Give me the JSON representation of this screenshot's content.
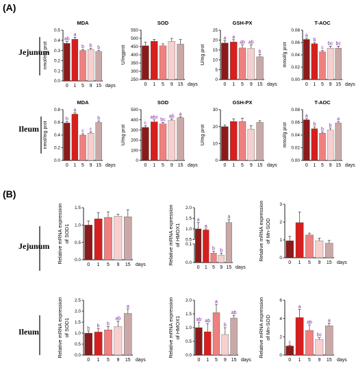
{
  "panel_labels": {
    "a": "(A)",
    "b": "(B)"
  },
  "row_labels": {
    "jejunum": "Jejunum",
    "ileum": "Ileum"
  },
  "days_label": "days",
  "colors": [
    "#8B1A1A",
    "#D61F1F",
    "#F08080",
    "#F6CFCF",
    "#C9A8A8"
  ],
  "chart_data": [
    {
      "id": "a_jej_mda",
      "type": "bar",
      "title": "MDA",
      "ylabel": "nmol/mg prot",
      "categories": [
        "0",
        "1",
        "5",
        "9",
        "15"
      ],
      "ylim": [
        0,
        0.5
      ],
      "yticks": [
        "0.0",
        "0.1",
        "0.2",
        "0.3",
        "0.4",
        "0.5"
      ],
      "values": [
        0.37,
        0.41,
        0.3,
        0.31,
        0.29
      ],
      "errors": [
        0.02,
        0.02,
        0.01,
        0.01,
        0.01
      ],
      "labels": [
        "ab",
        "a",
        "b",
        "b",
        "b"
      ]
    },
    {
      "id": "a_jej_sod",
      "type": "bar",
      "title": "SOD",
      "ylabel": "U/mgprot",
      "categories": [
        "0",
        "1",
        "5",
        "9",
        "15"
      ],
      "ylim": [
        250,
        550
      ],
      "yticks": [
        "250",
        "300",
        "350",
        "400",
        "450",
        "500",
        "550"
      ],
      "values": [
        455,
        482,
        455,
        482,
        465
      ],
      "errors": [
        22,
        12,
        12,
        18,
        28
      ],
      "labels": [
        "",
        "",
        "",
        "",
        ""
      ]
    },
    {
      "id": "a_jej_gsh",
      "type": "bar",
      "title": "GSH-PX",
      "ylabel": "U/mg prot",
      "categories": [
        "0",
        "1",
        "5",
        "9",
        "15"
      ],
      "ylim": [
        0,
        25
      ],
      "yticks": [
        "0",
        "5",
        "10",
        "15",
        "20",
        "25"
      ],
      "values": [
        18.5,
        19,
        16,
        15.8,
        11.5
      ],
      "errors": [
        1.2,
        1.2,
        1.5,
        1.8,
        1.2
      ],
      "labels": [
        "a",
        "a",
        "ab",
        "ab",
        "b"
      ]
    },
    {
      "id": "a_jej_taoc",
      "type": "bar",
      "title": "T-AOC",
      "ylabel": "mmol/g prot",
      "categories": [
        "0",
        "1",
        "5",
        "9",
        "15"
      ],
      "ylim": [
        0,
        0.08
      ],
      "yticks": [
        "0.00",
        "0.02",
        "0.04",
        "0.06",
        "0.08"
      ],
      "values": [
        0.065,
        0.058,
        0.045,
        0.051,
        0.051
      ],
      "errors": [
        0.002,
        0.002,
        0.002,
        0.003,
        0.003
      ],
      "labels": [
        "a",
        "b",
        "c",
        "bc",
        "bc"
      ]
    },
    {
      "id": "a_ile_mda",
      "type": "bar",
      "title": "MDA",
      "ylabel": "nmol/mg prot",
      "categories": [
        "0",
        "1",
        "5",
        "9",
        "15"
      ],
      "ylim": [
        0,
        0.8
      ],
      "yticks": [
        "0.0",
        "0.2",
        "0.4",
        "0.6",
        "0.8"
      ],
      "values": [
        0.59,
        0.73,
        0.4,
        0.43,
        0.6
      ],
      "errors": [
        0.02,
        0.02,
        0.02,
        0.02,
        0.02
      ],
      "labels": [
        "b",
        "a",
        "c",
        "c",
        "b"
      ]
    },
    {
      "id": "a_ile_sod",
      "type": "bar",
      "title": "SOD",
      "ylabel": "U/mg prot",
      "categories": [
        "0",
        "1",
        "5",
        "9",
        "15"
      ],
      "ylim": [
        0,
        500
      ],
      "yticks": [
        "0",
        "100",
        "200",
        "300",
        "400",
        "500"
      ],
      "values": [
        325,
        380,
        360,
        395,
        420
      ],
      "errors": [
        15,
        20,
        15,
        15,
        10
      ],
      "labels": [
        "c",
        "abc",
        "bc",
        "ab",
        "a"
      ]
    },
    {
      "id": "a_ile_gsh",
      "type": "bar",
      "title": "GSH-PX",
      "ylabel": "U/mg prot",
      "categories": [
        "0",
        "1",
        "5",
        "9",
        "15"
      ],
      "ylim": [
        0,
        30
      ],
      "yticks": [
        "0",
        "10",
        "20",
        "30"
      ],
      "values": [
        20,
        23,
        23,
        18.5,
        22.5
      ],
      "errors": [
        1,
        1.5,
        2,
        2,
        1
      ],
      "labels": [
        "",
        "",
        "",
        "",
        ""
      ]
    },
    {
      "id": "a_ile_taoc",
      "type": "bar",
      "title": "T-AOC",
      "ylabel": "mmol/g prot",
      "categories": [
        "0",
        "1",
        "5",
        "9",
        "15"
      ],
      "ylim": [
        0,
        0.08
      ],
      "yticks": [
        "0.00",
        "0.02",
        "0.04",
        "0.06",
        "0.08"
      ],
      "values": [
        0.064,
        0.05,
        0.043,
        0.048,
        0.059
      ],
      "errors": [
        0.002,
        0.003,
        0.002,
        0.003,
        0.002
      ],
      "labels": [
        "a",
        "b",
        "b",
        "b",
        "a"
      ]
    },
    {
      "id": "b_jej_sod1",
      "type": "bar",
      "title": "",
      "ylabel": "Relative mRNA expression of SOD1",
      "categories": [
        "0",
        "1",
        "5",
        "9",
        "15"
      ],
      "ylim": [
        0,
        1.5
      ],
      "yticks": [
        "0.0",
        "0.5",
        "1.0",
        "1.5"
      ],
      "values": [
        1,
        1.18,
        1.22,
        1.26,
        1.24
      ],
      "errors": [
        0.12,
        0.18,
        0.16,
        0.05,
        0.2
      ],
      "labels": [
        "",
        "",
        "",
        "",
        ""
      ]
    },
    {
      "id": "b_jej_hmox1",
      "type": "bar",
      "title": "",
      "ylabel": "Relative mRNA expression of HMOX1",
      "categories": [
        "0",
        "1",
        "5",
        "9",
        "15"
      ],
      "broken_axis": true,
      "ylim_upper": [
        0.5,
        2.0
      ],
      "yticks_upper": [
        "0.5",
        "1.0",
        "1.5",
        "2.0"
      ],
      "ylim_lower": [
        0,
        0.1
      ],
      "yticks_lower": [
        "0.0",
        "0.1"
      ],
      "values": [
        1.0,
        0.95,
        0.05,
        0.04,
        1.3
      ],
      "errors": [
        0.3,
        0.05,
        0.01,
        0.01,
        0.15
      ],
      "labels": [
        "a",
        "a",
        "b",
        "b",
        "a"
      ]
    },
    {
      "id": "b_jej_mnsod",
      "type": "bar",
      "title": "",
      "ylabel": "Relative mRNA expression of Mn-SOD",
      "categories": [
        "0",
        "1",
        "5",
        "9",
        "15"
      ],
      "ylim": [
        0,
        3
      ],
      "yticks": [
        "0",
        "1",
        "2",
        "3"
      ],
      "values": [
        0.95,
        1.97,
        1.28,
        0.95,
        0.82
      ],
      "errors": [
        0.25,
        0.6,
        0.1,
        0.15,
        0.15
      ],
      "labels": [
        "",
        "",
        "",
        "",
        ""
      ]
    },
    {
      "id": "b_ile_sod1",
      "type": "bar",
      "title": "",
      "ylabel": "Relative mRNA expression of SOD1",
      "categories": [
        "0",
        "1",
        "5",
        "9",
        "15"
      ],
      "ylim": [
        0,
        2.5
      ],
      "yticks": [
        "0.0",
        "0.5",
        "1.0",
        "1.5",
        "2.0",
        "2.5"
      ],
      "values": [
        1.0,
        1.05,
        1.15,
        1.3,
        1.9
      ],
      "errors": [
        0.1,
        0.15,
        0.15,
        0.25,
        0.2
      ],
      "labels": [
        "b",
        "b",
        "b",
        "ab",
        "a"
      ]
    },
    {
      "id": "b_ile_hmox1",
      "type": "bar",
      "title": "",
      "ylabel": "Relative mRNA expression of HMOX1",
      "categories": [
        "0",
        "1",
        "5",
        "9",
        "15"
      ],
      "ylim": [
        0,
        2
      ],
      "yticks": [
        "0.0",
        "0.5",
        "1.0",
        "1.5",
        "2.0"
      ],
      "values": [
        1.0,
        0.85,
        1.55,
        0.75,
        1.35
      ],
      "errors": [
        0.2,
        0.3,
        0.3,
        0.25,
        0.1
      ],
      "labels": [
        "ab",
        "ab",
        "a",
        "b",
        "ab"
      ]
    },
    {
      "id": "b_ile_mnsod",
      "type": "bar",
      "title": "",
      "ylabel": "Relative mRNA expression of Mn-SOD",
      "categories": [
        "0",
        "1",
        "5",
        "9",
        "15"
      ],
      "ylim": [
        0,
        6
      ],
      "yticks": [
        "0",
        "2",
        "4",
        "6"
      ],
      "values": [
        1.0,
        4.1,
        2.7,
        1.7,
        3.2
      ],
      "errors": [
        0.1,
        0.9,
        0.6,
        0.2,
        0.3
      ],
      "labels": [
        "c",
        "a",
        "ab",
        "bc",
        "a"
      ]
    }
  ]
}
